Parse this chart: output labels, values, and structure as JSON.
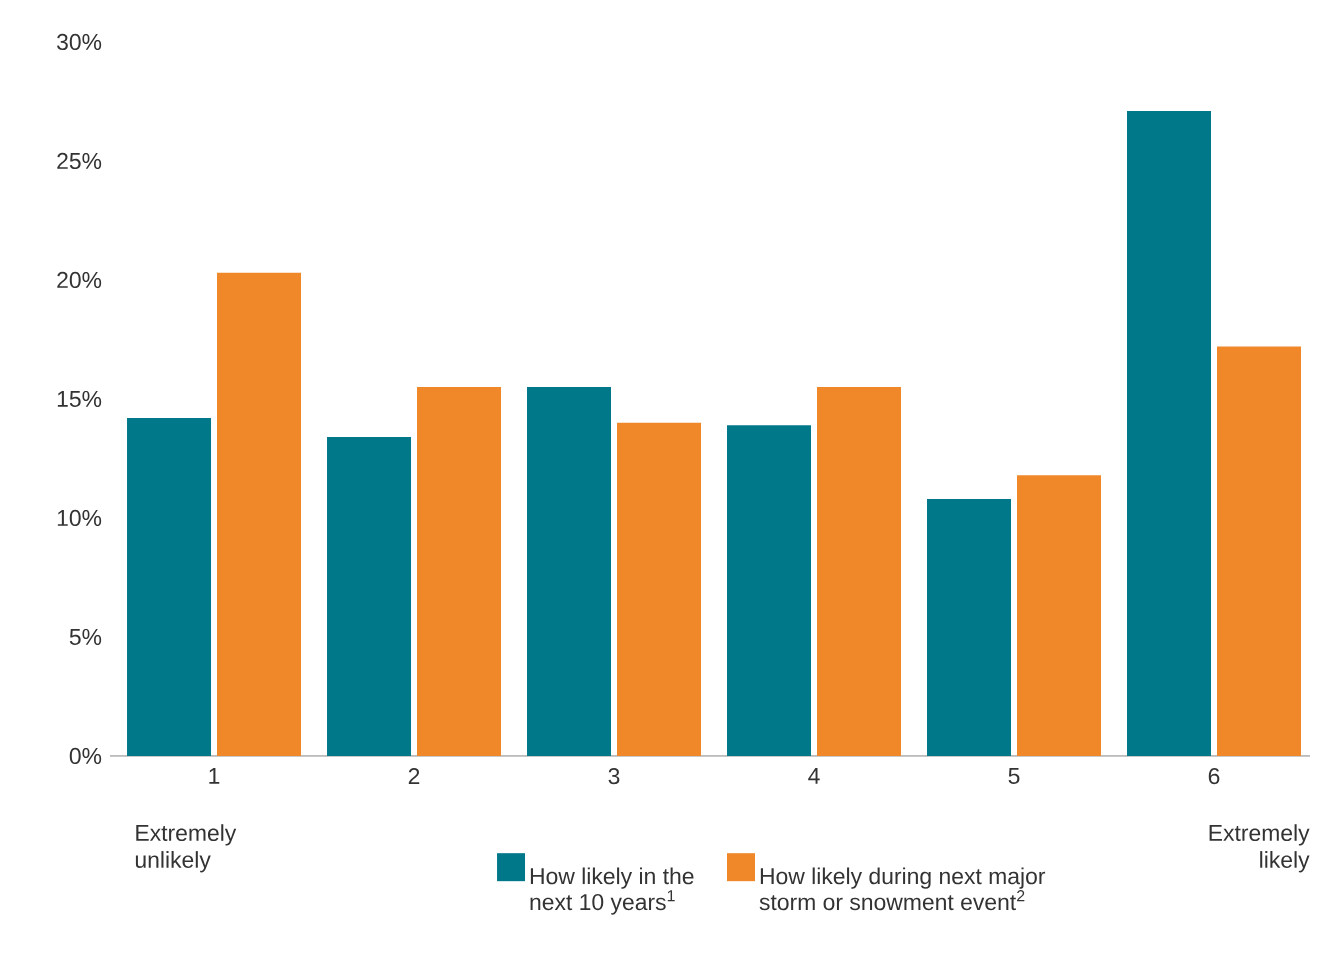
{
  "chart_data": {
    "type": "bar",
    "categories": [
      "1",
      "2",
      "3",
      "4",
      "5",
      "6"
    ],
    "series": [
      {
        "name": "How likely in the next 10 years$^{1}$",
        "color": "#00788a",
        "values": [
          14.2,
          13.4,
          15.5,
          13.9,
          10.8,
          27.1
        ]
      },
      {
        "name": "How likely during next major storm or snowment event$^{2}$",
        "color": "#f0882a",
        "values": [
          20.3,
          15.5,
          14.0,
          15.5,
          11.8,
          17.2
        ]
      }
    ],
    "ylim": [
      0,
      30
    ],
    "yticks": [
      {
        "value": 0,
        "label": "0%"
      },
      {
        "value": 5,
        "label": "5%"
      },
      {
        "value": 10,
        "label": "10%"
      },
      {
        "value": 15,
        "label": "15%"
      },
      {
        "value": 20,
        "label": "20%"
      },
      {
        "value": 25,
        "label": "25%"
      },
      {
        "value": 30,
        "label": "30%"
      }
    ],
    "legend": "bottom",
    "annotations": [
      "Extremely unlikely",
      "Extremely likely"
    ]
  }
}
